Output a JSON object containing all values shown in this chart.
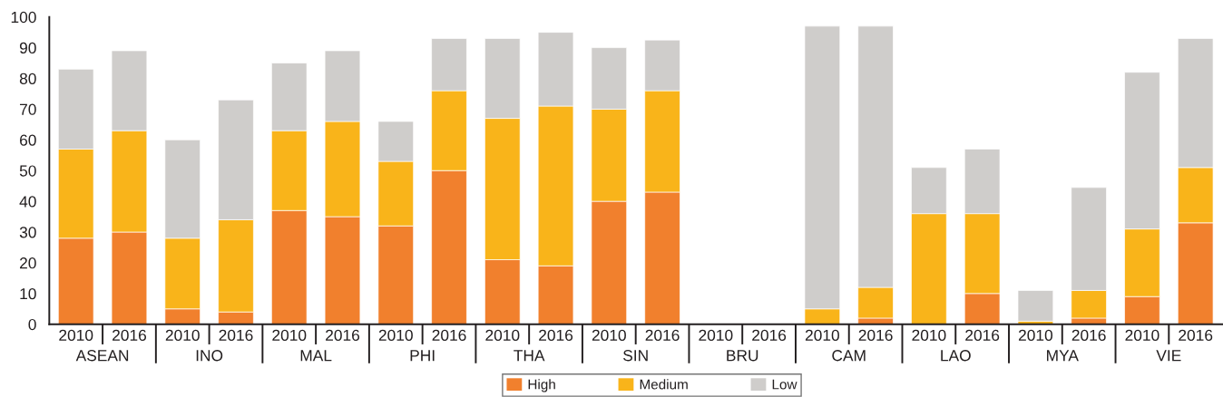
{
  "chart_data": {
    "type": "bar",
    "stacked": true,
    "categories": [
      "2010",
      "2016",
      "2010",
      "2016",
      "2010",
      "2016",
      "2010",
      "2016",
      "2010",
      "2016",
      "2010",
      "2016",
      "2010",
      "2016",
      "2010",
      "2016",
      "2010",
      "2016",
      "2010",
      "2016",
      "2010",
      "2016"
    ],
    "annotations": [
      "ASEAN",
      "INO",
      "MAL",
      "PHI",
      "THA",
      "SIN",
      "BRU",
      "CAM",
      "LAO",
      "MYA",
      "VIE"
    ],
    "series": [
      {
        "name": "High",
        "color": "#f1802d",
        "values": [
          28,
          30,
          5,
          4,
          37,
          35,
          32,
          50,
          21,
          19,
          40,
          43,
          null,
          null,
          null,
          2,
          null,
          10,
          null,
          2,
          9,
          33
        ]
      },
      {
        "name": "Medium",
        "color": "#f9b41a",
        "values": [
          29,
          33,
          23,
          30,
          26,
          31,
          21,
          26,
          46,
          52,
          30,
          33,
          null,
          null,
          5,
          10,
          36,
          26,
          1,
          9,
          22,
          18
        ]
      },
      {
        "name": "Low",
        "color": "#cfcdcb",
        "values": [
          26,
          26,
          32,
          39,
          22,
          23,
          13,
          17,
          26,
          24,
          20,
          16.5,
          null,
          null,
          92,
          85,
          15,
          21,
          10,
          33.5,
          51,
          42
        ]
      }
    ],
    "ylim": [
      0,
      100
    ],
    "yticks": [
      0,
      10,
      20,
      30,
      40,
      50,
      60,
      70,
      80,
      90,
      100
    ],
    "legend": "bottom"
  }
}
